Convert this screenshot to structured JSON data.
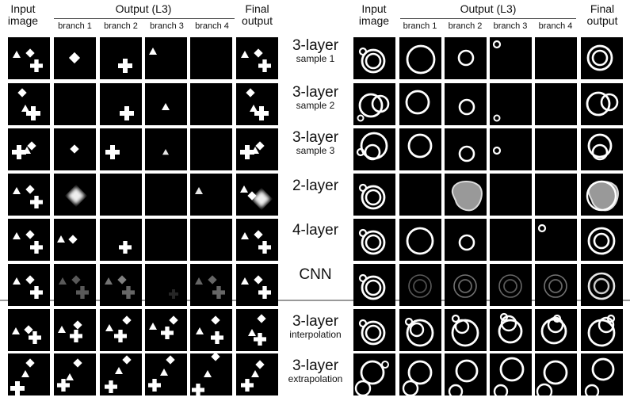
{
  "header": {
    "left": {
      "input_line1": "Input",
      "input_line2": "image",
      "output": "Output (L3)",
      "branches": [
        "branch 1",
        "branch 2",
        "branch 3",
        "branch 4"
      ],
      "final_line1": "Final",
      "final_line2": "output"
    },
    "right": {
      "input_line1": "Input",
      "input_line2": "image",
      "output": "Output (L3)",
      "branches": [
        "branch 1",
        "branch 2",
        "branch 3",
        "branch 4"
      ],
      "final_line1": "Final",
      "final_line2": "output"
    }
  },
  "rows": [
    {
      "label": "3-layer",
      "sub": "sample 1"
    },
    {
      "label": "3-layer",
      "sub": "sample 2"
    },
    {
      "label": "3-layer",
      "sub": "sample 3"
    },
    {
      "label": "2-layer",
      "sub": ""
    },
    {
      "label": "4-layer",
      "sub": ""
    },
    {
      "label": "CNN",
      "sub": ""
    },
    {
      "label": "3-layer",
      "sub": "interpolation"
    },
    {
      "label": "3-layer",
      "sub": "extrapolation"
    }
  ]
}
